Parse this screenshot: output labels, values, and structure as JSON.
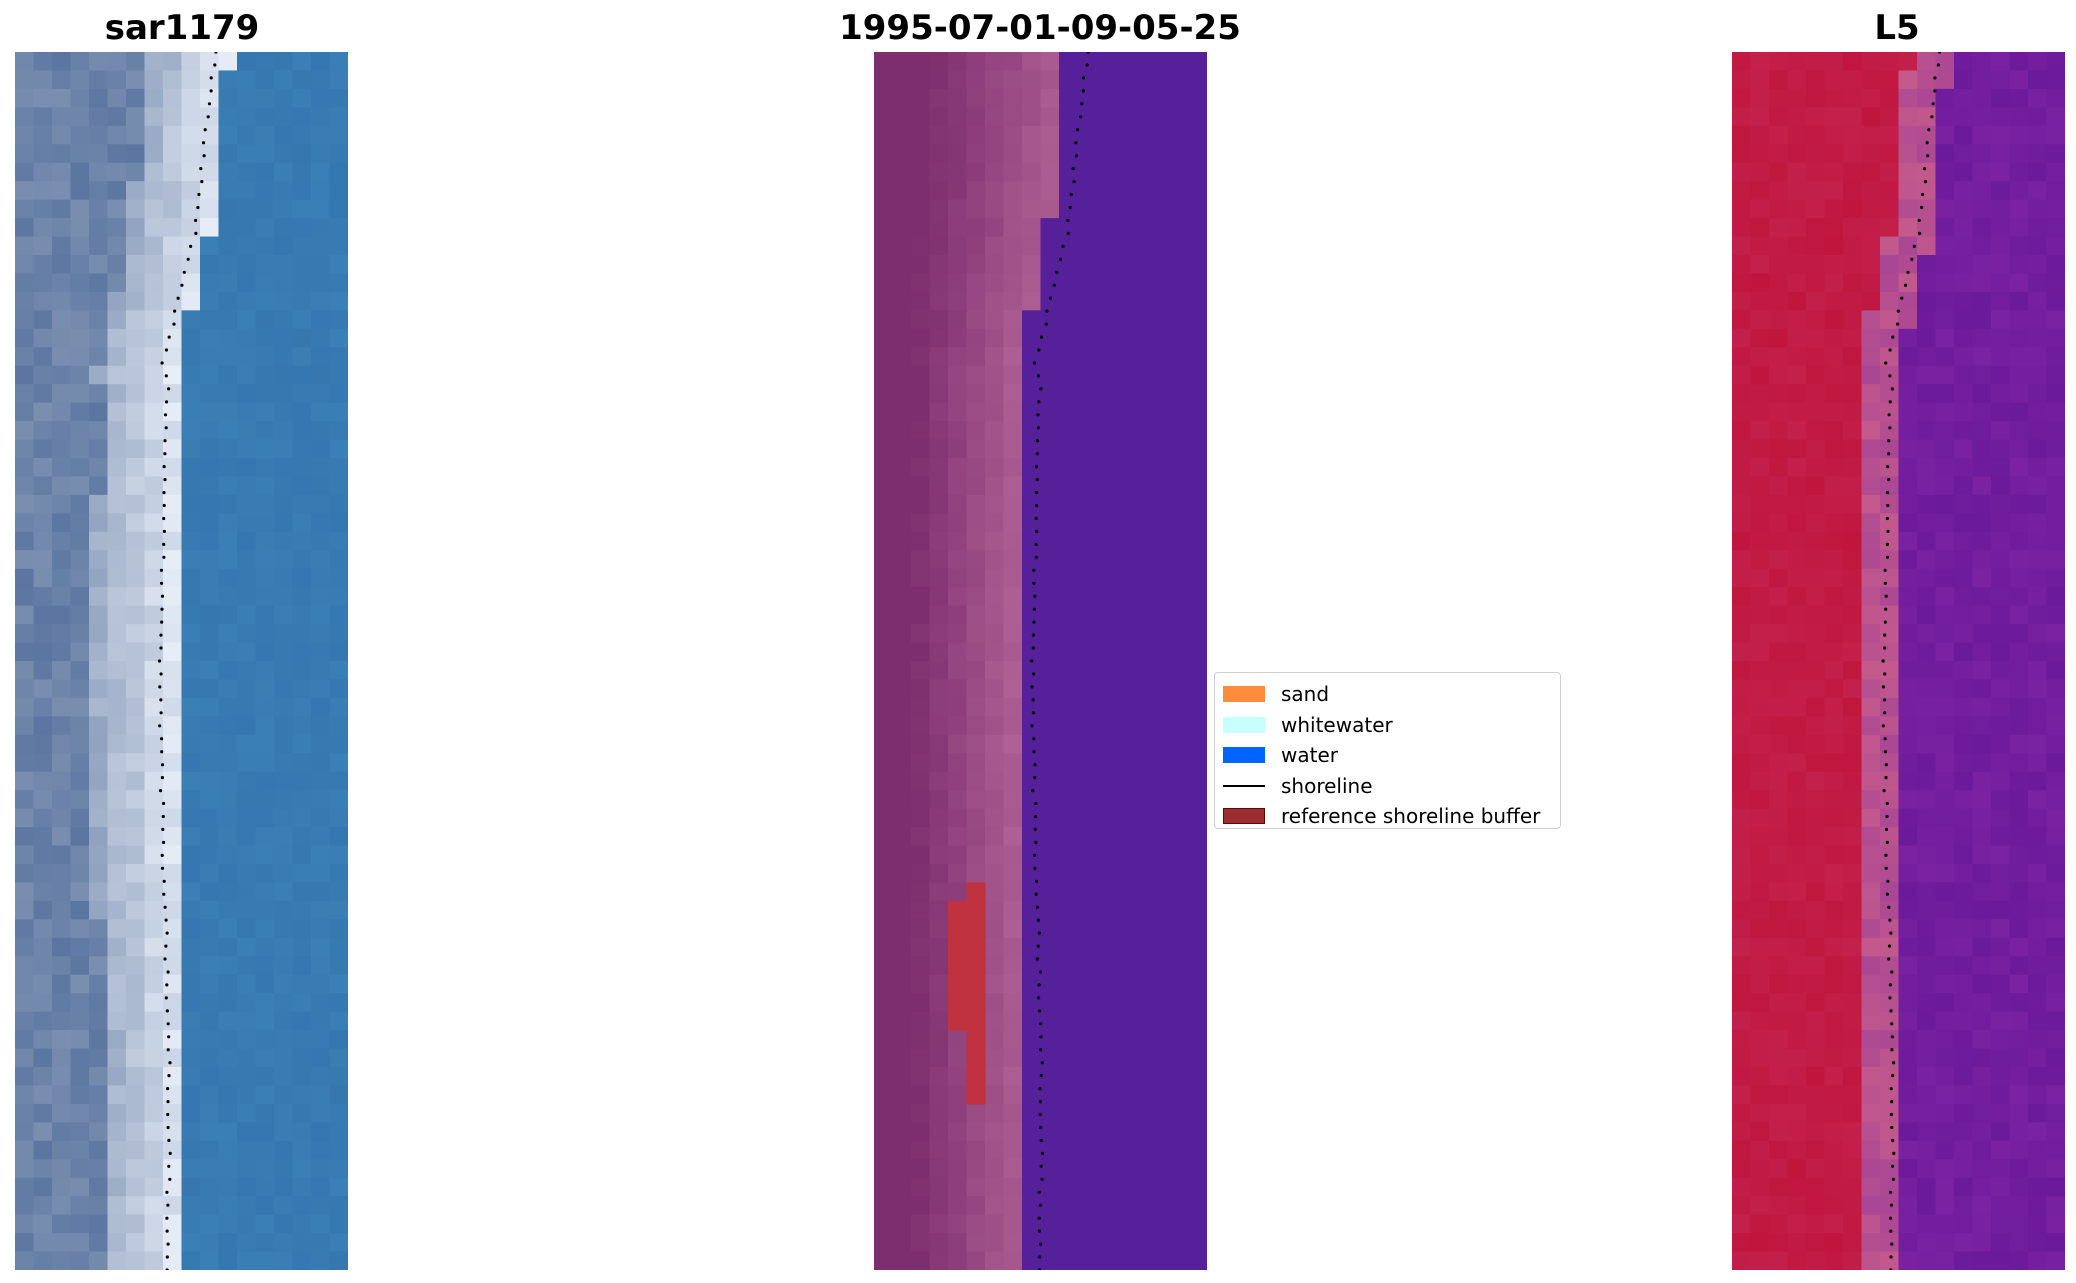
{
  "panels": [
    {
      "title": "sar1179"
    },
    {
      "title": "1995-07-01-09-05-25"
    },
    {
      "title": "L5"
    }
  ],
  "legend": {
    "items": [
      {
        "label": "sand",
        "color": "#ff8c3c",
        "kind": "patch"
      },
      {
        "label": "whitewater",
        "color": "#c8ffff",
        "kind": "patch"
      },
      {
        "label": "water",
        "color": "#0064ff",
        "kind": "patch"
      },
      {
        "label": "shoreline",
        "color": "#000000",
        "kind": "line"
      },
      {
        "label": "reference shoreline buffer",
        "color": "#8b1e1e",
        "kind": "patch",
        "border": "#5a0a0a"
      }
    ]
  },
  "colors": {
    "rgb_sand": "#7a8fb0",
    "rgb_white": "#e8eef8",
    "rgb_water": "#3a7fb5",
    "class_sand": "#7d2e6e",
    "class_beach": "#b06295",
    "class_water": "#55209a",
    "class_buffer": "#c0323f",
    "index_land": "#c0163e",
    "index_transition": "#c45a8c",
    "index_water": "#7a22a2"
  }
}
